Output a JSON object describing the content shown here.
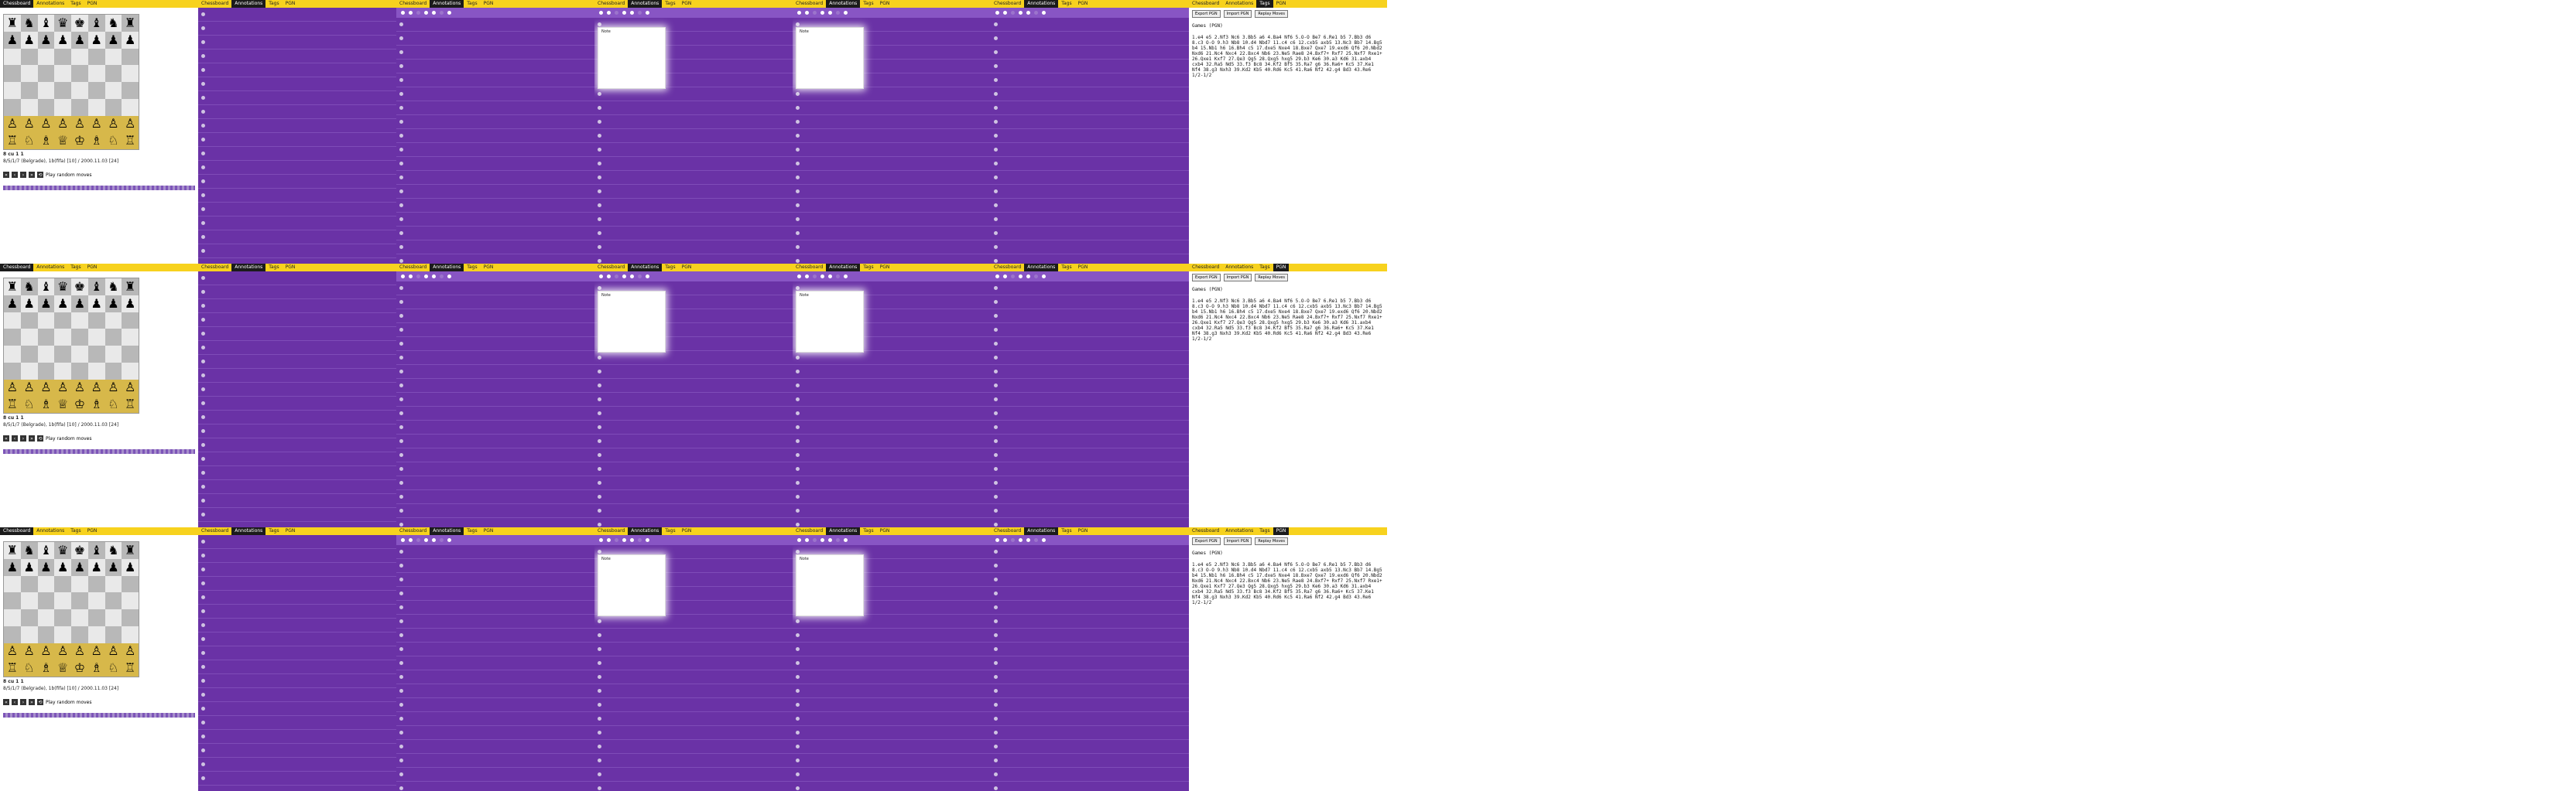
{
  "tabs": [
    "Chessboard",
    "Annotations",
    "Tags",
    "PGN"
  ],
  "tab_states": [
    "Chessboard",
    "Annotations",
    "Annotations",
    "Annotations",
    "Annotations",
    "Annotations",
    "Tags"
  ],
  "move_info": {
    "title": "8 cu 1 1",
    "subtitle": "8/5/1/7 (Belgrade), 1b(fifa) [10] / 2000.11.03 [24]"
  },
  "controls": [
    "«",
    "‹",
    "›",
    "»",
    "⟲"
  ],
  "auto_label": "Play random moves",
  "popup_label": "Note",
  "list_rows": [
    "",
    "",
    "",
    "",
    "",
    "",
    "",
    "",
    "",
    "",
    "",
    "",
    "",
    "",
    "",
    "",
    "",
    ""
  ],
  "text_buttons": [
    "Export PGN",
    "Import PGN",
    "Replay Moves"
  ],
  "text_label": "Games (PGN)",
  "pgn_text": "1.e4 e5 2.Nf3 Nc6 3.Bb5 a6 4.Ba4 Nf6 5.O-O Be7 6.Re1 b5 7.Bb3 d6 8.c3 O-O 9.h3 Nb8 10.d4 Nbd7 11.c4 c6 12.cxb5 axb5 13.Nc3 Bb7 14.Bg5 b4 15.Nb1 h6 16.Bh4 c5 17.dxe5 Nxe4 18.Bxe7 Qxe7 19.exd6 Qf6 20.Nbd2 Nxd6 21.Nc4 Nxc4 22.Bxc4 Nb6 23.Ne5 Rae8 24.Bxf7+ Rxf7 25.Nxf7 Rxe1+ 26.Qxe1 Kxf7 27.Qe3 Qg5 28.Qxg5 hxg5 29.b3 Ke6 30.a3 Kd6 31.axb4 cxb4 32.Ra5 Nd5 33.f3 Bc8 34.Kf2 Bf5 35.Ra7 g6 36.Ra6+ Kc5 37.Ke1 Nf4 38.g3 Nxh3 39.Kd2 Kb5 40.Rd6 Kc5 41.Ra6 Nf2 42.g4 Bd3 43.Re6 1/2-1/2"
}
